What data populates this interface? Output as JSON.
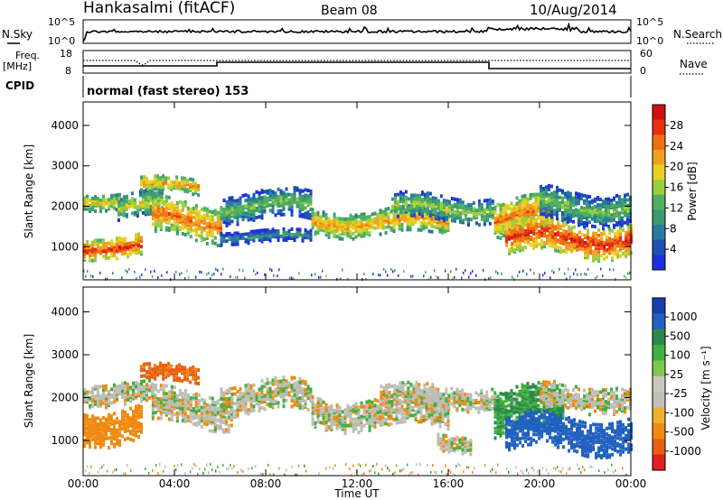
{
  "header": {
    "station": "Hankasalmi (fitACF)",
    "beam": "Beam 08",
    "date": "10/Aug/2014"
  },
  "status_panels": {
    "nsky_label": "N.Sky",
    "nsearch_label": "N.Search",
    "noise_ticks": [
      "10^5",
      "10^0"
    ],
    "freq_label_line1": "Freq.",
    "freq_label_line2": "[MHz]",
    "freq_ticks": [
      "18",
      "8"
    ],
    "nave_label": "Nave",
    "nave_ticks": [
      "60",
      "0"
    ],
    "cpid_label": "CPID",
    "cpid_text": "normal (fast stereo) 153"
  },
  "colors": {
    "power_scale": [
      "#1f2fe0",
      "#1f4fb0",
      "#2a7aa0",
      "#3a9a70",
      "#50b060",
      "#9acd40",
      "#e8d020",
      "#f0a020",
      "#f07010",
      "#e83010",
      "#d01010"
    ],
    "velocity_scale": [
      "#1a3cb0",
      "#2060c0",
      "#2a8a4a",
      "#40b040",
      "#80c850",
      "#c8c8c0",
      "#c0c0b8",
      "#f0b030",
      "#f08a10",
      "#e86010",
      "#e02020"
    ],
    "velocity_ground": "#bdbdb5"
  },
  "chart_data": [
    {
      "type": "heatmap",
      "name": "power",
      "ylabel": "Slant Range [km]",
      "xlabel": "Time UT",
      "x_ticks": [
        "00:00",
        "04:00",
        "08:00",
        "12:00",
        "16:00",
        "20:00",
        "00:00"
      ],
      "xlim_hours": [
        0,
        24
      ],
      "y_ticks": [
        1000,
        2000,
        3000,
        4000
      ],
      "ylim": [
        180,
        4580
      ],
      "colorbar_label": "Power [dB]",
      "colorbar_ticks": [
        4,
        8,
        12,
        16,
        20,
        24,
        28
      ],
      "echo_bands": [
        {
          "from_hr": 0.0,
          "to_hr": 2.5,
          "range_km": 1050,
          "width_km": 250,
          "power": 28
        },
        {
          "from_hr": 0.0,
          "to_hr": 1.6,
          "range_km": 2200,
          "width_km": 200,
          "power": 20
        },
        {
          "from_hr": 1.5,
          "to_hr": 3.5,
          "range_km": 2050,
          "width_km": 300,
          "power": 18
        },
        {
          "from_hr": 2.5,
          "to_hr": 5.0,
          "range_km": 2550,
          "width_km": 200,
          "power": 22
        },
        {
          "from_hr": 3.0,
          "to_hr": 6.0,
          "range_km": 1700,
          "width_km": 450,
          "power": 24
        },
        {
          "from_hr": 6.0,
          "to_hr": 10.0,
          "range_km": 2050,
          "width_km": 350,
          "power": 14
        },
        {
          "from_hr": 6.0,
          "to_hr": 10.0,
          "range_km": 1300,
          "width_km": 150,
          "power": 10
        },
        {
          "from_hr": 10.0,
          "to_hr": 16.0,
          "range_km": 1650,
          "width_km": 300,
          "power": 22
        },
        {
          "from_hr": 13.5,
          "to_hr": 18.0,
          "range_km": 2000,
          "width_km": 300,
          "power": 16
        },
        {
          "from_hr": 18.0,
          "to_hr": 20.5,
          "range_km": 1750,
          "width_km": 450,
          "power": 24
        },
        {
          "from_hr": 18.5,
          "to_hr": 24.0,
          "range_km": 1250,
          "width_km": 400,
          "power": 28
        },
        {
          "from_hr": 20.0,
          "to_hr": 24.0,
          "range_km": 2050,
          "width_km": 400,
          "power": 14
        }
      ]
    },
    {
      "type": "heatmap",
      "name": "velocity",
      "ylabel": "Slant Range [km]",
      "xlabel": "Time UT",
      "x_ticks": [
        "00:00",
        "04:00",
        "08:00",
        "12:00",
        "16:00",
        "20:00",
        "00:00"
      ],
      "xlim_hours": [
        0,
        24
      ],
      "y_ticks": [
        1000,
        2000,
        3000,
        4000
      ],
      "ylim": [
        180,
        4580
      ],
      "colorbar_label": "Velocity [m s⁻¹]",
      "colorbar_ticks": [
        1000,
        500,
        100,
        25,
        -25,
        -100,
        -500,
        -1000
      ],
      "echo_bands": [
        {
          "from_hr": 0.0,
          "to_hr": 2.5,
          "range_km": 1400,
          "width_km": 400,
          "velocity": -300
        },
        {
          "from_hr": 0.0,
          "to_hr": 3.0,
          "range_km": 2150,
          "width_km": 250,
          "velocity": 0
        },
        {
          "from_hr": 2.5,
          "to_hr": 5.0,
          "range_km": 2600,
          "width_km": 200,
          "velocity": -450
        },
        {
          "from_hr": 3.0,
          "to_hr": 6.5,
          "range_km": 1800,
          "width_km": 400,
          "velocity": 0
        },
        {
          "from_hr": 6.0,
          "to_hr": 10.0,
          "range_km": 2050,
          "width_km": 350,
          "velocity": 0
        },
        {
          "from_hr": 10.0,
          "to_hr": 16.0,
          "range_km": 1700,
          "width_km": 350,
          "velocity": 0
        },
        {
          "from_hr": 13.0,
          "to_hr": 18.0,
          "range_km": 2050,
          "width_km": 250,
          "velocity": 0
        },
        {
          "from_hr": 15.5,
          "to_hr": 17.0,
          "range_km": 1000,
          "width_km": 200,
          "velocity": 0
        },
        {
          "from_hr": 18.0,
          "to_hr": 21.0,
          "range_km": 1700,
          "width_km": 500,
          "velocity": 150
        },
        {
          "from_hr": 18.5,
          "to_hr": 24.0,
          "range_km": 1200,
          "width_km": 400,
          "velocity": 400
        },
        {
          "from_hr": 20.0,
          "to_hr": 24.0,
          "range_km": 2050,
          "width_km": 300,
          "velocity": 0
        }
      ]
    }
  ]
}
